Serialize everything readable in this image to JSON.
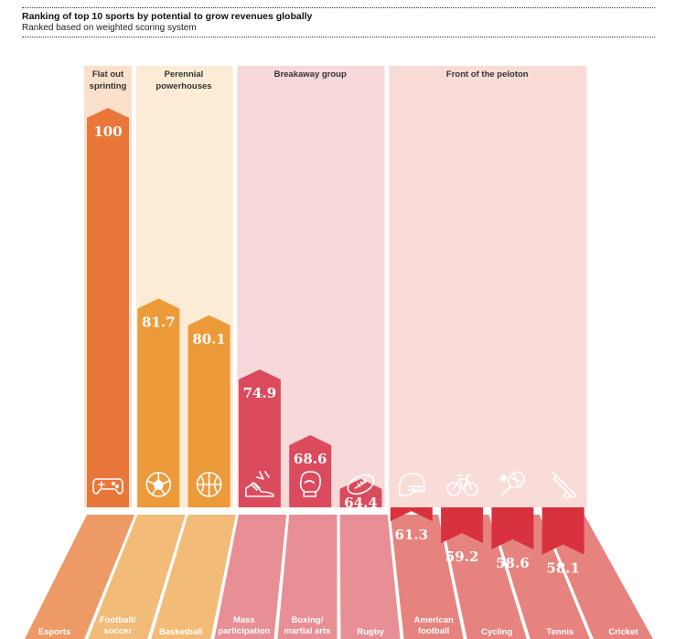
{
  "header": {
    "title": "Ranking of top 10 sports by potential to grow revenues globally",
    "subtitle": "Ranked based on weighted scoring system"
  },
  "chart_data": {
    "type": "bar",
    "title": "Ranking of top 10 sports by potential to grow revenues globally",
    "subtitle": "Ranked based on weighted scoring system",
    "xlabel": "",
    "ylabel": "",
    "ylim": [
      0,
      100
    ],
    "categories": [
      {
        "label": [
          "Esports"
        ],
        "value": 100,
        "display": "100",
        "icon": "gamepad-icon",
        "group": 0
      },
      {
        "label": [
          "Football/",
          "soccer"
        ],
        "value": 81.7,
        "display": "81.7",
        "icon": "football-icon",
        "group": 1
      },
      {
        "label": [
          "Basketball"
        ],
        "value": 80.1,
        "display": "80.1",
        "icon": "basketball-icon",
        "group": 1
      },
      {
        "label": [
          "Mass",
          "participation"
        ],
        "value": 74.9,
        "display": "74.9",
        "icon": "running-shoe-icon",
        "group": 2
      },
      {
        "label": [
          "Boxing/",
          "martial arts"
        ],
        "value": 68.6,
        "display": "68.6",
        "icon": "boxing-glove-icon",
        "group": 2
      },
      {
        "label": [
          "Rugby"
        ],
        "value": 64.4,
        "display": "64.4",
        "icon": "rugby-ball-icon",
        "group": 2
      },
      {
        "label": [
          "American",
          "football"
        ],
        "value": 61.3,
        "display": "61.3",
        "icon": "helmet-icon",
        "group": 3
      },
      {
        "label": [
          "Cycling"
        ],
        "value": 59.2,
        "display": "59.2",
        "icon": "bicycle-icon",
        "group": 3
      },
      {
        "label": [
          "Tennis"
        ],
        "value": 58.6,
        "display": "58.6",
        "icon": "tennis-racket-icon",
        "group": 3
      },
      {
        "label": [
          "Cricket"
        ],
        "value": 58.1,
        "display": "58.1",
        "icon": "cricket-bat-icon",
        "group": 3
      }
    ],
    "groups": [
      {
        "name": [
          "Flat out",
          "sprinting"
        ],
        "bg": "#fbe0cc",
        "bar": "#e9773a",
        "floor": "#ed9a66"
      },
      {
        "name": [
          "Perennial",
          "powerhouses"
        ],
        "bg": "#fcecd6",
        "bar": "#ec9a3a",
        "floor": "#f2bb78"
      },
      {
        "name": [
          "Breakaway group"
        ],
        "bg": "#f7d9d9",
        "bar": "#dc4a5e",
        "floor": "#e88f95"
      },
      {
        "name": [
          "Front of the peloton"
        ],
        "bg": "#f9dcd8",
        "bar": "#d9323f",
        "floor": "#e6837e"
      }
    ]
  }
}
